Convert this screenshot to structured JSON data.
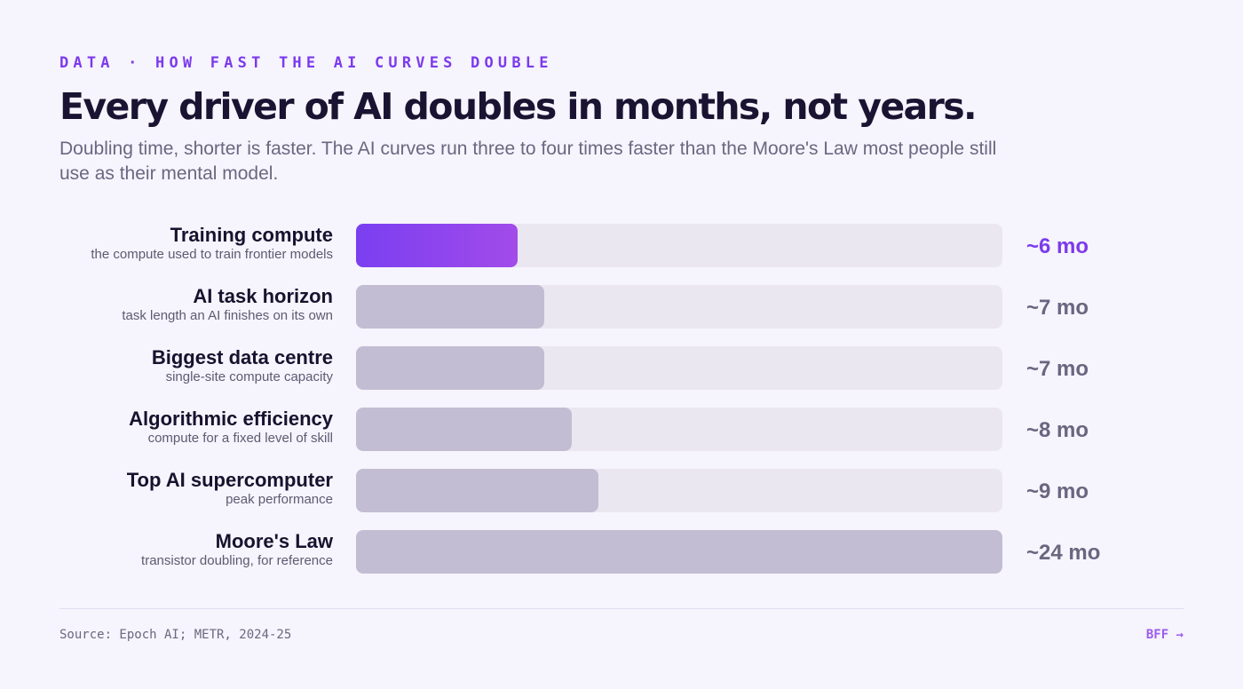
{
  "header": {
    "eyebrow": "DATA · HOW FAST THE AI CURVES DOUBLE",
    "title": "Every driver of AI doubles in months, not years.",
    "subtitle": "Doubling time, shorter is faster. The AI curves run three to four times faster than the Moore's Law most people still use as their mental model."
  },
  "colors": {
    "accent": "#7c3aed",
    "bar_default": "#c3bdd3",
    "track": "#ebe7f1"
  },
  "chart_data": {
    "type": "bar",
    "orientation": "horizontal",
    "unit": "mo",
    "xlim": [
      0,
      24
    ],
    "categories": [
      "Training compute",
      "AI task horizon",
      "Biggest data centre",
      "Algorithmic efficiency",
      "Top AI supercomputer",
      "Moore's Law"
    ],
    "descriptions": [
      "the compute used to train frontier models",
      "task length an AI finishes on its own",
      "single-site compute capacity",
      "compute for a fixed level of skill",
      "peak performance",
      "transistor doubling, for reference"
    ],
    "values": [
      6,
      7,
      7,
      8,
      9,
      24
    ],
    "value_labels": [
      "~6 mo",
      "~7 mo",
      "~7 mo",
      "~8 mo",
      "~9 mo",
      "~24 mo"
    ],
    "highlighted": [
      true,
      false,
      false,
      false,
      false,
      false
    ]
  },
  "footer": {
    "source": "Source: Epoch AI; METR, 2024-25",
    "brand": "BFF →"
  }
}
